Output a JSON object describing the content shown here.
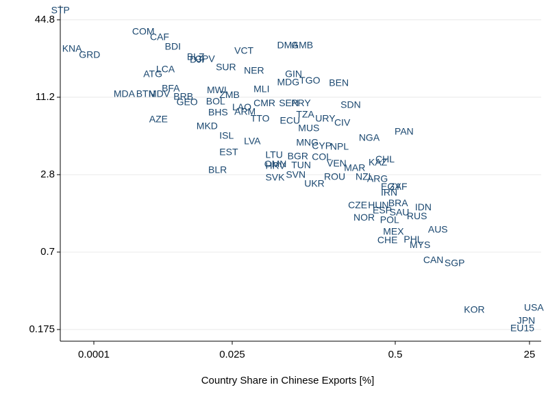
{
  "chart_data": {
    "type": "scatter",
    "x_label": "Country Share in Chinese Exports [%]",
    "x_scale": "log",
    "y_scale": "log",
    "grid": true,
    "color": "#1a476f",
    "xlim": [
      2.6e-05,
      35
    ],
    "ylim": [
      0.142,
      57.9
    ],
    "xticks": [
      0.0001,
      0.025,
      0.5,
      25
    ],
    "yticks": [
      0.175,
      0.7,
      2.8,
      11.2,
      44.8
    ],
    "labels": [
      "STP",
      "KNA",
      "GRD",
      "COM",
      "CAF",
      "BDI",
      "BLZ",
      "DJI",
      "CPV",
      "VCT",
      "SUR",
      "NER",
      "DMA",
      "GMB",
      "GIN",
      "MDG",
      "TGO",
      "BEN",
      "ATG",
      "LCA",
      "MLI",
      "BFA",
      "MDA",
      "BTN",
      "MDV",
      "BRB",
      "GEO",
      "MWI",
      "BOL",
      "ZMB",
      "LAO",
      "CMR",
      "ARM",
      "BHS",
      "SEN",
      "PRY",
      "TTO",
      "SDN",
      "TZA",
      "URY",
      "CIV",
      "ECU",
      "AZE",
      "MKD",
      "ISL",
      "LVA",
      "EST",
      "NGA",
      "PAN",
      "MUS",
      "MNG",
      "CYP",
      "NPL",
      "LTU",
      "BGR",
      "COL",
      "CHL",
      "KAZ",
      "OMN",
      "HRV",
      "TUN",
      "VEN",
      "MAR",
      "SVK",
      "SVN",
      "ROU",
      "NZL",
      "ARG",
      "UKR",
      "BLR",
      "EGY",
      "ZAF",
      "IRN",
      "BRA",
      "CZE",
      "HUN",
      "IDN",
      "ESP",
      "SAU",
      "RUS",
      "NOR",
      "POL",
      "AUS",
      "MEX",
      "CHE",
      "PHL",
      "MYS",
      "CAN",
      "SGP",
      "KOR",
      "USA",
      "JPN",
      "EU15"
    ],
    "x": [
      1.8e-05,
      2.8e-05,
      5.5e-05,
      0.00046,
      0.00094,
      0.0017,
      0.0041,
      0.0046,
      0.0057,
      0.026,
      0.013,
      0.031,
      0.057,
      0.074,
      0.066,
      0.057,
      0.086,
      0.148,
      0.00072,
      0.0012,
      0.037,
      0.0015,
      0.00022,
      0.00054,
      0.00089,
      0.0024,
      0.0027,
      0.0091,
      0.0088,
      0.015,
      0.025,
      0.037,
      0.026,
      0.0096,
      0.059,
      0.074,
      0.035,
      0.183,
      0.081,
      0.115,
      0.163,
      0.06,
      0.00091,
      0.006,
      0.015,
      0.031,
      0.015,
      0.256,
      0.494,
      0.084,
      0.081,
      0.108,
      0.151,
      0.046,
      0.069,
      0.108,
      0.347,
      0.306,
      0.045,
      0.046,
      0.074,
      0.142,
      0.195,
      0.046,
      0.067,
      0.135,
      0.241,
      0.298,
      0.094,
      0.0096,
      0.384,
      0.447,
      0.384,
      0.44,
      0.21,
      0.303,
      0.89,
      0.33,
      0.45,
      0.7,
      0.232,
      0.378,
      1.3,
      0.4,
      0.36,
      0.64,
      0.76,
      1.13,
      2.1,
      3.7,
      21.3,
      17.4,
      14.3
    ],
    "y": [
      52.6,
      26.4,
      23.7,
      35.9,
      32.6,
      27.4,
      22.8,
      21.7,
      22.0,
      25.5,
      19.0,
      17.9,
      28.1,
      28.1,
      16.8,
      14.5,
      15.0,
      14.3,
      16.8,
      18.3,
      12.8,
      13.0,
      11.8,
      11.8,
      11.8,
      11.2,
      10.2,
      12.6,
      10.3,
      11.6,
      9.3,
      10.0,
      8.55,
      8.45,
      10.0,
      10.0,
      7.57,
      9.67,
      8.14,
      7.57,
      7.03,
      7.29,
      7.47,
      6.61,
      5.56,
      5.05,
      4.15,
      5.37,
      5.99,
      6.37,
      4.92,
      4.63,
      4.57,
      3.95,
      3.85,
      3.8,
      3.66,
      3.45,
      3.36,
      3.24,
      3.28,
      3.4,
      3.13,
      2.63,
      2.77,
      2.67,
      2.67,
      2.57,
      2.36,
      3.01,
      2.24,
      2.24,
      2.01,
      1.67,
      1.61,
      1.61,
      1.55,
      1.46,
      1.41,
      1.32,
      1.29,
      1.23,
      1.04,
      1.0,
      0.86,
      0.87,
      0.79,
      0.6,
      0.57,
      0.247,
      0.256,
      0.203,
      0.177
    ]
  }
}
